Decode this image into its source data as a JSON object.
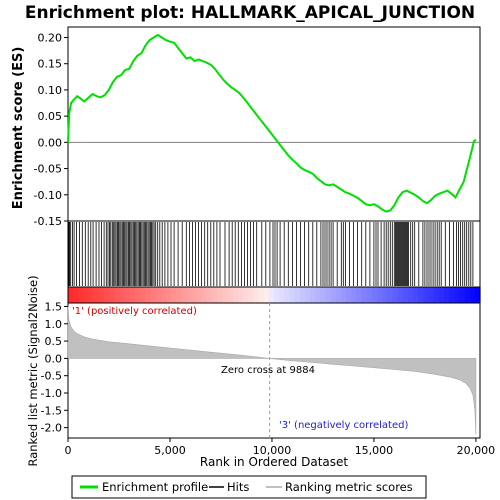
{
  "chart_data": {
    "type": "line",
    "title": "Enrichment plot: HALLMARK_APICAL_JUNCTION",
    "xlabel": "Rank in Ordered Dataset",
    "xlim": [
      0,
      20200
    ],
    "x_ticks": [
      0,
      5000,
      10000,
      15000,
      20000
    ],
    "x_tick_labels": [
      "0",
      "5,000",
      "10,000",
      "15,000",
      "20,000"
    ],
    "panels": {
      "enrichment": {
        "ylabel": "Enrichment score (ES)",
        "ylim": [
          -0.15,
          0.22
        ],
        "y_ticks": [
          -0.15,
          -0.1,
          -0.05,
          0.0,
          0.05,
          0.1,
          0.15,
          0.2
        ],
        "y_tick_labels": [
          "-0.15",
          "-0.10",
          "-0.05",
          "0.00",
          "0.05",
          "0.10",
          "0.15",
          "0.20"
        ],
        "grid": false,
        "series": [
          {
            "name": "Enrichment profile",
            "color": "#00e000",
            "x": [
              0,
              60,
              150,
              300,
              450,
              600,
              800,
              1000,
              1200,
              1400,
              1600,
              1800,
              2000,
              2200,
              2400,
              2600,
              2800,
              3000,
              3200,
              3400,
              3600,
              3800,
              4000,
              4200,
              4400,
              4600,
              4800,
              5000,
              5200,
              5400,
              5600,
              5800,
              6000,
              6200,
              6400,
              6600,
              6800,
              7000,
              7200,
              7400,
              7600,
              7800,
              8000,
              8200,
              8400,
              8600,
              8800,
              9000,
              9200,
              9400,
              9600,
              9800,
              10000,
              10200,
              10400,
              10600,
              10800,
              11000,
              11200,
              11400,
              11600,
              11800,
              12000,
              12200,
              12400,
              12600,
              12800,
              13000,
              13200,
              13400,
              13600,
              13800,
              14000,
              14200,
              14400,
              14600,
              14800,
              15000,
              15200,
              15400,
              15600,
              15800,
              16000,
              16200,
              16400,
              16600,
              16800,
              17000,
              17200,
              17400,
              17600,
              17800,
              18000,
              18200,
              18400,
              18600,
              18800,
              19000,
              19200,
              19400,
              19500,
              19600,
              19700,
              19800,
              19900,
              20000
            ],
            "y": [
              0.0,
              0.055,
              0.075,
              0.082,
              0.088,
              0.084,
              0.078,
              0.085,
              0.092,
              0.088,
              0.086,
              0.09,
              0.1,
              0.115,
              0.125,
              0.128,
              0.138,
              0.14,
              0.155,
              0.165,
              0.17,
              0.185,
              0.195,
              0.2,
              0.205,
              0.2,
              0.195,
              0.192,
              0.19,
              0.18,
              0.17,
              0.16,
              0.162,
              0.155,
              0.158,
              0.155,
              0.152,
              0.148,
              0.14,
              0.13,
              0.12,
              0.112,
              0.105,
              0.1,
              0.094,
              0.085,
              0.075,
              0.065,
              0.055,
              0.045,
              0.035,
              0.025,
              0.015,
              0.005,
              -0.005,
              -0.015,
              -0.025,
              -0.033,
              -0.04,
              -0.048,
              -0.053,
              -0.056,
              -0.06,
              -0.068,
              -0.074,
              -0.08,
              -0.082,
              -0.08,
              -0.085,
              -0.09,
              -0.095,
              -0.098,
              -0.102,
              -0.106,
              -0.112,
              -0.118,
              -0.12,
              -0.118,
              -0.122,
              -0.128,
              -0.132,
              -0.13,
              -0.12,
              -0.105,
              -0.095,
              -0.092,
              -0.096,
              -0.1,
              -0.105,
              -0.112,
              -0.116,
              -0.11,
              -0.102,
              -0.098,
              -0.095,
              -0.092,
              -0.098,
              -0.105,
              -0.09,
              -0.075,
              -0.06,
              -0.045,
              -0.03,
              -0.015,
              0.002,
              0.005
            ]
          }
        ]
      },
      "hits": {
        "positions": [
          40,
          80,
          130,
          220,
          300,
          420,
          560,
          700,
          850,
          990,
          1120,
          1230,
          1380,
          1520,
          1640,
          1770,
          1880,
          1960,
          2040,
          2100,
          2170,
          2240,
          2300,
          2360,
          2420,
          2480,
          2540,
          2600,
          2660,
          2720,
          2780,
          2840,
          2900,
          2960,
          3020,
          3080,
          3140,
          3200,
          3260,
          3320,
          3380,
          3440,
          3500,
          3560,
          3620,
          3680,
          3740,
          3800,
          3860,
          3920,
          3980,
          4040,
          4100,
          4160,
          4220,
          4300,
          4400,
          4500,
          4620,
          4750,
          4900,
          5050,
          5200,
          5400,
          5600,
          5800,
          5950,
          6100,
          6250,
          6400,
          6550,
          6700,
          6850,
          7000,
          7150,
          7300,
          7450,
          7700,
          7900,
          8050,
          8200,
          8350,
          8500,
          8650,
          8800,
          8950,
          9100,
          9250,
          9500,
          9700,
          9900,
          10050,
          10150,
          10250,
          10400,
          10600,
          10800,
          11000,
          11200,
          11400,
          11600,
          11800,
          12000,
          12200,
          12400,
          12500,
          12600,
          12700,
          12800,
          12900,
          13000,
          13200,
          13400,
          13500,
          13600,
          13800,
          14000,
          14200,
          14400,
          14600,
          14800,
          15000,
          15100,
          15200,
          15350,
          15500,
          15600,
          15700,
          15800,
          15900,
          16000,
          16050,
          16100,
          16150,
          16200,
          16250,
          16300,
          16350,
          16400,
          16450,
          16500,
          16550,
          16600,
          16650,
          16700,
          16800,
          16900,
          17000,
          17200,
          17400,
          17500,
          17600,
          17700,
          17800,
          17900,
          18000,
          18100,
          18200,
          18300,
          18500,
          18700,
          18900,
          19050,
          19150,
          19250,
          19350,
          19450,
          19550,
          19650,
          19750,
          19850
        ]
      },
      "ranked_metric": {
        "ylabel": "Ranked list metric (Signal2Noise)",
        "ylim": [
          -2.3,
          1.6
        ],
        "y_ticks": [
          -2.0,
          -1.5,
          -1.0,
          -0.5,
          0.0,
          0.5,
          1.0,
          1.5
        ],
        "y_tick_labels": [
          "-2.0",
          "-1.5",
          "-1.0",
          "-0.5",
          "0.0",
          "0.5",
          "1.0",
          "1.5"
        ],
        "x": [
          0,
          50,
          150,
          300,
          500,
          800,
          1200,
          2000,
          3000,
          4000,
          5000,
          6000,
          7000,
          8000,
          9000,
          9884,
          11000,
          12000,
          13000,
          14000,
          15000,
          16000,
          17000,
          18000,
          18800,
          19200,
          19500,
          19700,
          19850,
          19950,
          20000
        ],
        "y": [
          1.52,
          1.1,
          0.9,
          0.78,
          0.7,
          0.62,
          0.56,
          0.48,
          0.42,
          0.36,
          0.3,
          0.24,
          0.18,
          0.12,
          0.06,
          0.0,
          -0.07,
          -0.12,
          -0.17,
          -0.22,
          -0.27,
          -0.32,
          -0.38,
          -0.46,
          -0.55,
          -0.62,
          -0.72,
          -0.85,
          -1.05,
          -1.5,
          -2.2
        ],
        "zero_cross_label": "Zero cross at 9884",
        "zero_cross_x": 9884,
        "positive_label": "'1' (positively correlated)",
        "negative_label": "'3' (negatively correlated)"
      }
    },
    "legend": {
      "placement": "bottom",
      "entries": [
        {
          "label": "Enrichment profile",
          "color": "#00e000"
        },
        {
          "label": "Hits",
          "color": "#000000"
        },
        {
          "label": "Ranking metric scores",
          "color": "#c0c0c0"
        }
      ]
    },
    "colors": {
      "positive": "#ff0000",
      "negative": "#0000ff",
      "metric_fill": "#c0c0c0",
      "zero_line": "#808080"
    }
  }
}
